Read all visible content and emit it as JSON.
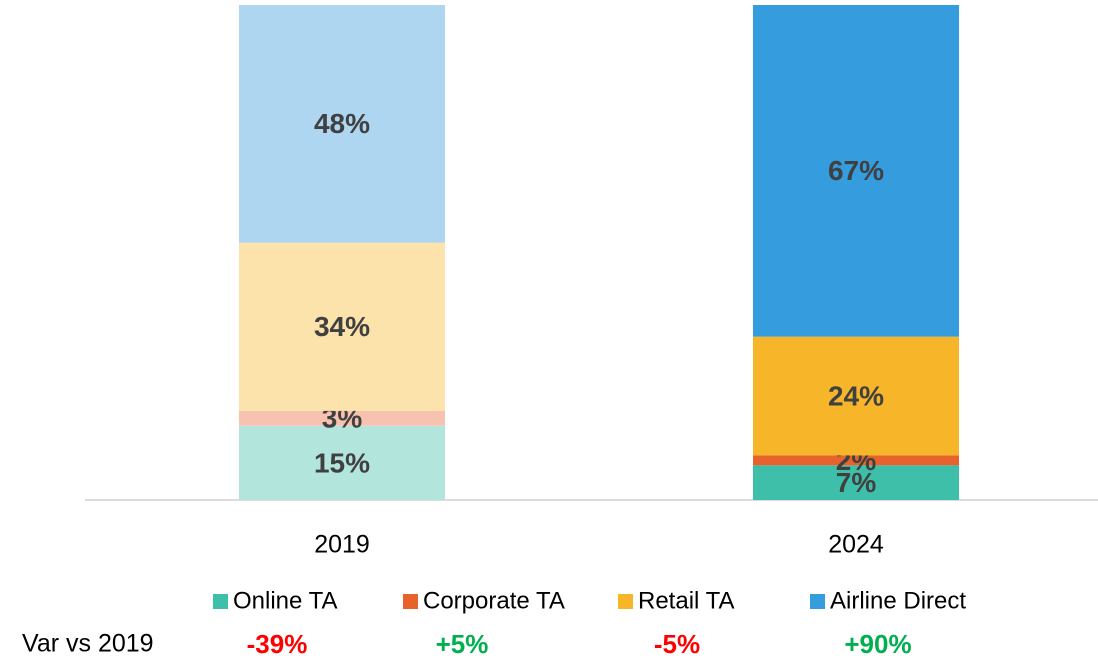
{
  "chart_data": {
    "type": "stacked_bar",
    "categories": [
      "2019",
      "2024"
    ],
    "series": [
      {
        "name": "Online TA",
        "color": "#3dbfaa",
        "colors": [
          "#b2e6dd",
          "#3dbfaa"
        ],
        "values": [
          15,
          7
        ],
        "value_labels": [
          "15%",
          "7%"
        ]
      },
      {
        "name": "Corporate TA",
        "color": "#e8632b",
        "colors": [
          "#f7c3b0",
          "#e8632b"
        ],
        "values": [
          3,
          2
        ],
        "value_labels": [
          "3%",
          "2%"
        ]
      },
      {
        "name": "Retail TA",
        "color": "#f7b52a",
        "colors": [
          "#fce2ab",
          "#f7b52a"
        ],
        "values": [
          34,
          24
        ],
        "value_labels": [
          "34%",
          "24%"
        ]
      },
      {
        "name": "Airline Direct",
        "color": "#359cdd",
        "colors": [
          "#aed6f1",
          "#359cdd"
        ],
        "values": [
          48,
          67
        ],
        "value_labels": [
          "48%",
          "67%"
        ]
      }
    ],
    "ylim": [
      0,
      100
    ],
    "variance": {
      "label": "Var vs 2019",
      "values": [
        -39,
        5,
        -5,
        90
      ],
      "value_labels": [
        "-39%",
        "+5%",
        "-5%",
        "+90%"
      ],
      "positive_color": "#00b050",
      "negative_color": "#ff0000"
    }
  }
}
